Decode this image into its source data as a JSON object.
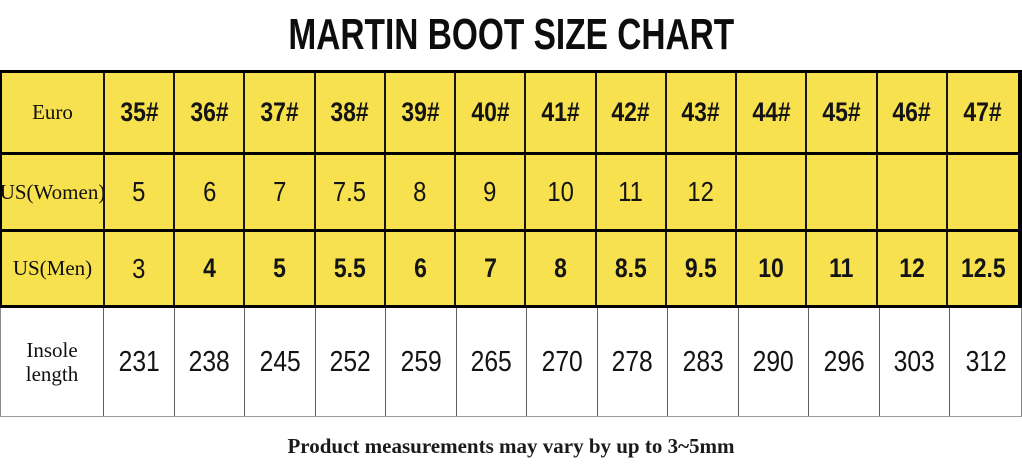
{
  "title": "MARTIN BOOT SIZE CHART",
  "footer_note": "Product measurements may vary by up to 3~5mm",
  "colors": {
    "row_yellow": "#F7E14E",
    "border_dark": "#000000",
    "border_light": "#8a8a8a"
  },
  "table": {
    "label_column_header": "",
    "rows": [
      {
        "id": "euro",
        "label": "Euro",
        "bg": "yellow",
        "bold_values": true,
        "values": [
          "35#",
          "36#",
          "37#",
          "38#",
          "39#",
          "40#",
          "41#",
          "42#",
          "43#",
          "44#",
          "45#",
          "46#",
          "47#"
        ]
      },
      {
        "id": "us-women",
        "label": "US(Women)",
        "bg": "yellow",
        "bold_values": false,
        "values": [
          "5",
          "6",
          "7",
          "7.5",
          "8",
          "9",
          "10",
          "11",
          "12",
          "",
          "",
          "",
          ""
        ]
      },
      {
        "id": "us-men",
        "label": "US(Men)",
        "bg": "yellow",
        "bold_values": true,
        "regular_value_indices": [
          0
        ],
        "values": [
          "3",
          "4",
          "5",
          "5.5",
          "6",
          "7",
          "8",
          "8.5",
          "9.5",
          "10",
          "11",
          "12",
          "12.5"
        ]
      },
      {
        "id": "insole-length",
        "label": "Insole length",
        "bg": "white",
        "bold_values": false,
        "values": [
          "231",
          "238",
          "245",
          "252",
          "259",
          "265",
          "270",
          "278",
          "283",
          "290",
          "296",
          "303",
          "312"
        ]
      }
    ]
  }
}
